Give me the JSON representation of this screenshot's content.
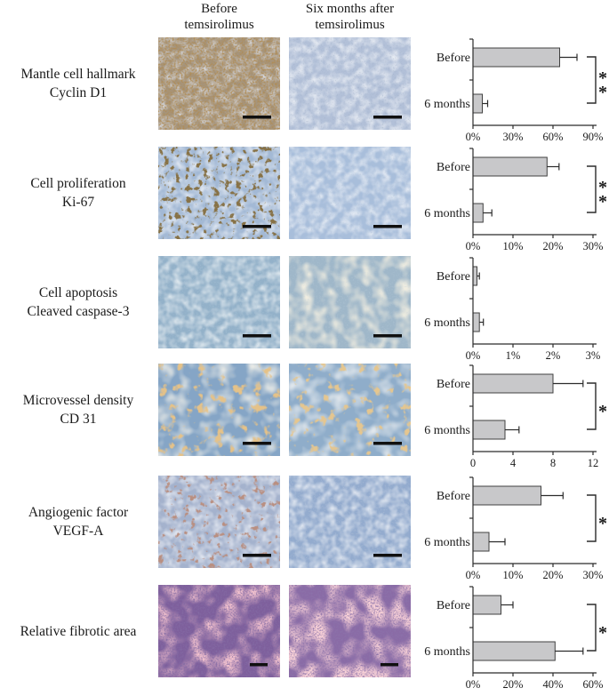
{
  "header": {
    "col1": {
      "line1": "Before",
      "line2": "temsirolimus"
    },
    "col2": {
      "line1": "Six months after",
      "line2": "temsirolimus"
    }
  },
  "colors": {
    "bar_fill": "#c8c8ca",
    "bar_stroke": "#404040",
    "axis": "#2b2b2b",
    "text": "#1a1a1a",
    "background": "#ffffff"
  },
  "rows": [
    {
      "label_line1": "Mantle cell hallmark",
      "label_line2": "Cyclin D1",
      "micrographs": [
        {
          "name": "before",
          "base": "#a5947c",
          "patch": "#b7c2d8",
          "speckle": "#6e4318",
          "style": "ihc-dense"
        },
        {
          "name": "after",
          "base": "#b2c0d8",
          "patch": "#dfe5ef",
          "speckle": "#55688c",
          "style": "ihc-clear"
        }
      ]
    },
    {
      "label_line1": "Cell proliferation",
      "label_line2": "Ki-67",
      "micrographs": [
        {
          "name": "before",
          "base": "#a3b9d5",
          "patch": "#dae2ee",
          "speckle": "#3e2b10",
          "style": "ihc-dots"
        },
        {
          "name": "after",
          "base": "#a8bedb",
          "patch": "#dde4f0",
          "speckle": "#6d83a6",
          "style": "ihc-clear"
        }
      ]
    },
    {
      "label_line1": "Cell apoptosis",
      "label_line2": "Cleaved caspase-3",
      "micrographs": [
        {
          "name": "before",
          "base": "#93b1c9",
          "patch": "#d3dfe6",
          "speckle": "#6f96b4",
          "style": "ihc-clear"
        },
        {
          "name": "after",
          "base": "#9fb7c9",
          "patch": "#ded8bf",
          "speckle": "#7d9ab3",
          "style": "ihc-patches"
        }
      ]
    },
    {
      "label_line1": "Microvessel density",
      "label_line2": "CD 31",
      "micrographs": [
        {
          "name": "before",
          "base": "#85a5c6",
          "patch": "#e8e3d2",
          "speckle": "#c8893f",
          "style": "ihc-vessels"
        },
        {
          "name": "after",
          "base": "#8fadca",
          "patch": "#dfe3e4",
          "speckle": "#c89046",
          "style": "ihc-vessels-sparse"
        }
      ]
    },
    {
      "label_line1": "Angiogenic factor",
      "label_line2": "VEGF-A",
      "micrographs": [
        {
          "name": "before",
          "base": "#a4b2cd",
          "patch": "#d9dfec",
          "speckle": "#7c4638",
          "style": "ihc-dots-sparse"
        },
        {
          "name": "after",
          "base": "#93abce",
          "patch": "#d9e0ec",
          "speckle": "#7e93b2",
          "style": "ihc-clear"
        }
      ]
    },
    {
      "label_line1": "Relative fibrotic area",
      "label_line2": "",
      "micrographs": [
        {
          "name": "before",
          "base": "#7e5f9c",
          "patch": "#e98da0",
          "speckle": "#3a255e",
          "style": "he"
        },
        {
          "name": "after",
          "base": "#8a6ba6",
          "patch": "#f0a2ae",
          "speckle": "#422b66",
          "style": "he-pink"
        }
      ]
    }
  ],
  "chart_data": [
    {
      "type": "bar",
      "orientation": "horizontal",
      "categories": [
        "Before",
        "6 months"
      ],
      "values": [
        65,
        7
      ],
      "errors": [
        13,
        4
      ],
      "tick_labels": [
        "0%",
        "30%",
        "60%",
        "90%"
      ],
      "xlim": [
        0,
        90
      ],
      "significance": "**"
    },
    {
      "type": "bar",
      "orientation": "horizontal",
      "categories": [
        "Before",
        "6 months"
      ],
      "values": [
        18.5,
        2.5
      ],
      "errors": [
        3,
        2.2
      ],
      "tick_labels": [
        "0%",
        "10%",
        "20%",
        "30%"
      ],
      "xlim": [
        0,
        30
      ],
      "significance": "**"
    },
    {
      "type": "bar",
      "orientation": "horizontal",
      "categories": [
        "Before",
        "6 months"
      ],
      "values": [
        0.1,
        0.16
      ],
      "errors": [
        0.06,
        0.1
      ],
      "tick_labels": [
        "0%",
        "1%",
        "2%",
        "3%"
      ],
      "xlim": [
        0,
        3
      ],
      "significance": ""
    },
    {
      "type": "bar",
      "orientation": "horizontal",
      "categories": [
        "Before",
        "6 months"
      ],
      "values": [
        8,
        3.2
      ],
      "errors": [
        3,
        1.4
      ],
      "tick_labels": [
        "0",
        "4",
        "8",
        "12"
      ],
      "xlim": [
        0,
        12
      ],
      "significance": "*"
    },
    {
      "type": "bar",
      "orientation": "horizontal",
      "categories": [
        "Before",
        "6 months"
      ],
      "values": [
        17,
        4
      ],
      "errors": [
        5.5,
        4
      ],
      "tick_labels": [
        "0%",
        "10%",
        "20%",
        "30%"
      ],
      "xlim": [
        0,
        30
      ],
      "significance": "*"
    },
    {
      "type": "bar",
      "orientation": "horizontal",
      "categories": [
        "Before",
        "6 months"
      ],
      "values": [
        14,
        41
      ],
      "errors": [
        6,
        14
      ],
      "tick_labels": [
        "0%",
        "20%",
        "40%",
        "60%"
      ],
      "xlim": [
        0,
        60
      ],
      "significance": "*"
    }
  ]
}
